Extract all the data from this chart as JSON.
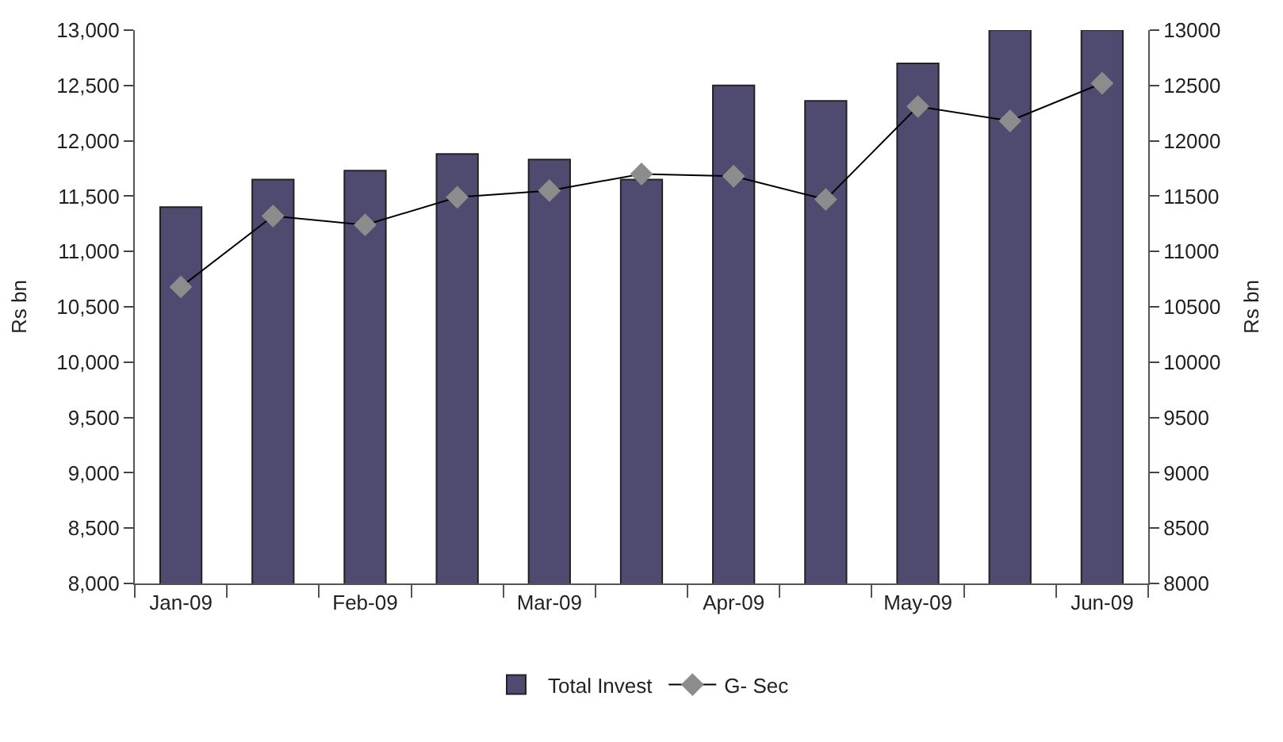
{
  "chart_data": {
    "type": "bar",
    "ylabel": "Rs bn",
    "y2label": "Rs bn",
    "categories": [
      "Jan-09",
      null,
      "Feb-09",
      null,
      "Mar-09",
      null,
      "Apr-09",
      null,
      "May-09",
      null,
      "Jun-09"
    ],
    "series": [
      {
        "name": "Total Invest",
        "color": "#4f4a70",
        "values": [
          11400,
          11650,
          11730,
          11880,
          11830,
          11650,
          12500,
          12360,
          12700,
          13000,
          13000
        ]
      },
      {
        "name": "G- Sec",
        "type": "line",
        "axis": "y2",
        "color": "#000000",
        "marker": "diamond",
        "values": [
          10680,
          11320,
          11240,
          11490,
          11550,
          11700,
          11680,
          11470,
          12310,
          12180,
          12520
        ]
      }
    ],
    "ylim": [
      8000,
      13000
    ],
    "yticks": [
      {
        "value": 8000,
        "label": "8,000"
      },
      {
        "value": 8500,
        "label": "8,500"
      },
      {
        "value": 9000,
        "label": "9,000"
      },
      {
        "value": 9500,
        "label": "9,500"
      },
      {
        "value": 10000,
        "label": "10,000"
      },
      {
        "value": 10500,
        "label": "10,500"
      },
      {
        "value": 11000,
        "label": "11,000"
      },
      {
        "value": 11500,
        "label": "11,500"
      },
      {
        "value": 12000,
        "label": "12,000"
      },
      {
        "value": 12500,
        "label": "12,500"
      },
      {
        "value": 13000,
        "label": "13,000"
      }
    ],
    "y2lim": [
      8000,
      13000
    ],
    "y2ticks": [
      8000,
      8500,
      9000,
      9500,
      10000,
      10500,
      11000,
      11500,
      12000,
      12500,
      13000
    ],
    "legend": "bottom"
  }
}
